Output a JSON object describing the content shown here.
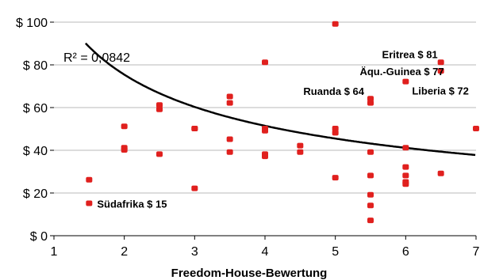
{
  "chart_data": {
    "type": "scatter",
    "title": "",
    "xlabel": "Freedom-House-Bewertung",
    "ylabel": "",
    "xlim": [
      1,
      7
    ],
    "ylim": [
      0,
      100
    ],
    "x_ticks": [
      "1",
      "2",
      "3",
      "4",
      "5",
      "6",
      "7"
    ],
    "y_ticks": [
      "$ 0",
      "$ 20",
      "$ 40",
      "$ 60",
      "$ 80",
      "$ 100"
    ],
    "grid": "horizontal",
    "point_color": "#e0201e",
    "trend_color": "#000000",
    "points": [
      {
        "x": 1.5,
        "y": 26
      },
      {
        "x": 1.5,
        "y": 15
      },
      {
        "x": 2,
        "y": 51
      },
      {
        "x": 2,
        "y": 41
      },
      {
        "x": 2,
        "y": 40
      },
      {
        "x": 2.5,
        "y": 61
      },
      {
        "x": 2.5,
        "y": 59
      },
      {
        "x": 2.5,
        "y": 38
      },
      {
        "x": 3,
        "y": 50
      },
      {
        "x": 3,
        "y": 50
      },
      {
        "x": 3,
        "y": 22
      },
      {
        "x": 3.5,
        "y": 65
      },
      {
        "x": 3.5,
        "y": 62
      },
      {
        "x": 3.5,
        "y": 45
      },
      {
        "x": 3.5,
        "y": 39
      },
      {
        "x": 4,
        "y": 81
      },
      {
        "x": 4,
        "y": 50
      },
      {
        "x": 4,
        "y": 49
      },
      {
        "x": 4,
        "y": 38
      },
      {
        "x": 4,
        "y": 37
      },
      {
        "x": 4.5,
        "y": 42
      },
      {
        "x": 4.5,
        "y": 39
      },
      {
        "x": 5,
        "y": 99
      },
      {
        "x": 5,
        "y": 50
      },
      {
        "x": 5,
        "y": 48
      },
      {
        "x": 5,
        "y": 27
      },
      {
        "x": 5.5,
        "y": 64
      },
      {
        "x": 5.5,
        "y": 62
      },
      {
        "x": 5.5,
        "y": 39
      },
      {
        "x": 5.5,
        "y": 28
      },
      {
        "x": 5.5,
        "y": 19
      },
      {
        "x": 5.5,
        "y": 14
      },
      {
        "x": 5.5,
        "y": 7
      },
      {
        "x": 6,
        "y": 72
      },
      {
        "x": 6,
        "y": 41
      },
      {
        "x": 6,
        "y": 32
      },
      {
        "x": 6,
        "y": 28
      },
      {
        "x": 6,
        "y": 25
      },
      {
        "x": 6,
        "y": 24
      },
      {
        "x": 6.5,
        "y": 81
      },
      {
        "x": 6.5,
        "y": 77
      },
      {
        "x": 6.5,
        "y": 29
      },
      {
        "x": 7,
        "y": 50
      }
    ],
    "trendline": {
      "type": "power",
      "a": 110.6,
      "b": -0.552,
      "label": "R² = 0,0842"
    },
    "annotations": [
      {
        "text": "Südafrika $ 15",
        "x": 1.5,
        "y": 15
      },
      {
        "text": "Ruanda $ 64",
        "x": 5.5,
        "y": 64
      },
      {
        "text": "Eritrea $ 81",
        "x": 6.5,
        "y": 81
      },
      {
        "text": "Äqu.-Guinea $ 77",
        "x": 6.5,
        "y": 77
      },
      {
        "text": "Liberia $ 72",
        "x": 6,
        "y": 72
      }
    ]
  }
}
